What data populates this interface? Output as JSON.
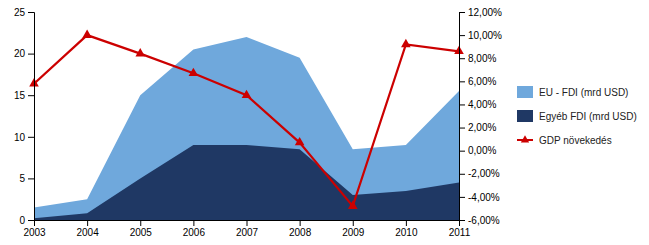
{
  "chart_data": {
    "type": "area",
    "x": [
      2003,
      2004,
      2005,
      2006,
      2007,
      2008,
      2009,
      2010,
      2011
    ],
    "xlim": [
      2003,
      2011
    ],
    "xticks": [
      2003,
      2004,
      2005,
      2006,
      2007,
      2008,
      2009,
      2010,
      2011
    ],
    "ylim": [
      0,
      25
    ],
    "yticks": [
      0,
      5,
      10,
      15,
      20,
      25
    ],
    "y2lim": [
      -0.06,
      0.12
    ],
    "y2ticks": [
      {
        "value": -0.06,
        "label": "-6,00%"
      },
      {
        "value": -0.04,
        "label": "-4,00%"
      },
      {
        "value": -0.02,
        "label": "-2,00%"
      },
      {
        "value": 0.0,
        "label": "0,00%"
      },
      {
        "value": 0.02,
        "label": "2,00%"
      },
      {
        "value": 0.04,
        "label": "4,00%"
      },
      {
        "value": 0.06,
        "label": "6,00%"
      },
      {
        "value": 0.08,
        "label": "8,00%"
      },
      {
        "value": 0.1,
        "label": "10,00%"
      },
      {
        "value": 0.12,
        "label": "12,00%"
      }
    ],
    "grid": false,
    "legend": "right",
    "series": [
      {
        "name": "EU - FDI (mrd USD)",
        "type": "area",
        "color": "#6fa8dc",
        "values": [
          1.5,
          2.5,
          15.0,
          20.5,
          22.0,
          19.5,
          8.5,
          9.0,
          15.5
        ]
      },
      {
        "name": "Egyéb FDI (mrd USD)",
        "type": "area",
        "color": "#1f3864",
        "values": [
          0.2,
          0.8,
          5.0,
          9.0,
          9.0,
          8.5,
          3.0,
          3.5,
          4.5
        ]
      },
      {
        "name": "GDP növekedés",
        "type": "line",
        "axis": "y2",
        "color": "#cc0000",
        "marker": "triangle",
        "values": [
          0.058,
          0.1,
          0.084,
          0.067,
          0.048,
          0.007,
          -0.048,
          0.092,
          0.086
        ]
      }
    ]
  }
}
